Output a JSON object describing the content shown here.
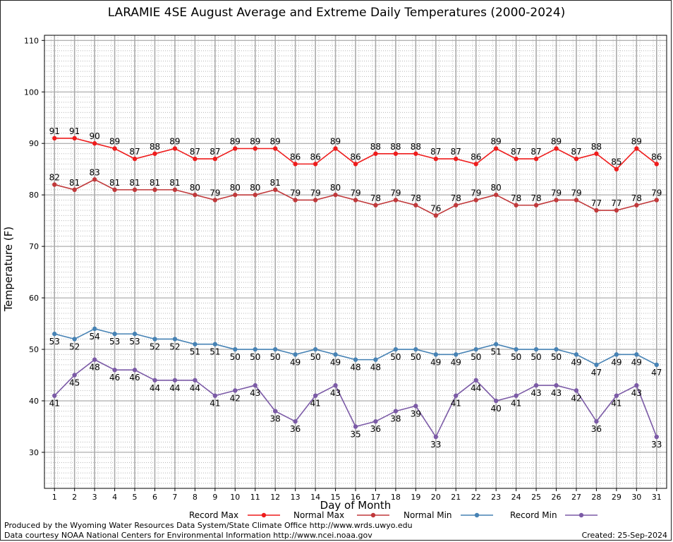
{
  "chart_data": {
    "type": "line",
    "title": "LARAMIE 4SE August Average and Extreme Daily Temperatures (2000-2024)",
    "xlabel": "Day of Month",
    "ylabel": "Temperature (F)",
    "ylim": [
      23,
      111
    ],
    "yticks": [
      30,
      40,
      50,
      60,
      70,
      80,
      90,
      100,
      110
    ],
    "grid": true,
    "legend_position": "bottom",
    "x": [
      1,
      2,
      3,
      4,
      5,
      6,
      7,
      8,
      9,
      10,
      11,
      12,
      13,
      14,
      15,
      16,
      17,
      18,
      19,
      20,
      21,
      22,
      23,
      24,
      25,
      26,
      27,
      28,
      29,
      30,
      31
    ],
    "series": [
      {
        "name": "Record Max",
        "color": "#ee1c1c",
        "values": [
          91,
          91,
          90,
          89,
          87,
          88,
          89,
          87,
          87,
          89,
          89,
          89,
          86,
          86,
          89,
          86,
          88,
          88,
          88,
          87,
          87,
          86,
          89,
          87,
          87,
          89,
          87,
          88,
          85,
          89,
          86
        ]
      },
      {
        "name": "Normal Max",
        "color": "#c0393b",
        "values": [
          82,
          81,
          83,
          81,
          81,
          81,
          81,
          80,
          79,
          80,
          80,
          81,
          79,
          79,
          80,
          79,
          78,
          79,
          78,
          76,
          78,
          79,
          80,
          78,
          78,
          79,
          79,
          77,
          77,
          78,
          79
        ]
      },
      {
        "name": "Normal Min",
        "color": "#4682b4",
        "values": [
          53,
          52,
          54,
          53,
          53,
          52,
          52,
          51,
          51,
          50,
          50,
          50,
          49,
          50,
          49,
          48,
          48,
          50,
          50,
          49,
          49,
          50,
          51,
          50,
          50,
          50,
          49,
          47,
          49,
          49,
          47
        ]
      },
      {
        "name": "Record Min",
        "color": "#7b5aa6",
        "values": [
          41,
          45,
          48,
          46,
          46,
          44,
          44,
          44,
          41,
          42,
          43,
          38,
          36,
          41,
          43,
          35,
          36,
          38,
          39,
          33,
          41,
          44,
          40,
          41,
          43,
          43,
          42,
          36,
          41,
          43,
          33
        ]
      }
    ]
  },
  "footer": {
    "credit_line1": "Produced by the Wyoming Water Resources Data System/State Climate Office http://www.wrds.uwyo.edu",
    "credit_line2": "Data courtesy NOAA National Centers for Environmental Information http://www.ncei.noaa.gov",
    "created_label": "Created:",
    "created_date": "25-Sep-2024"
  }
}
